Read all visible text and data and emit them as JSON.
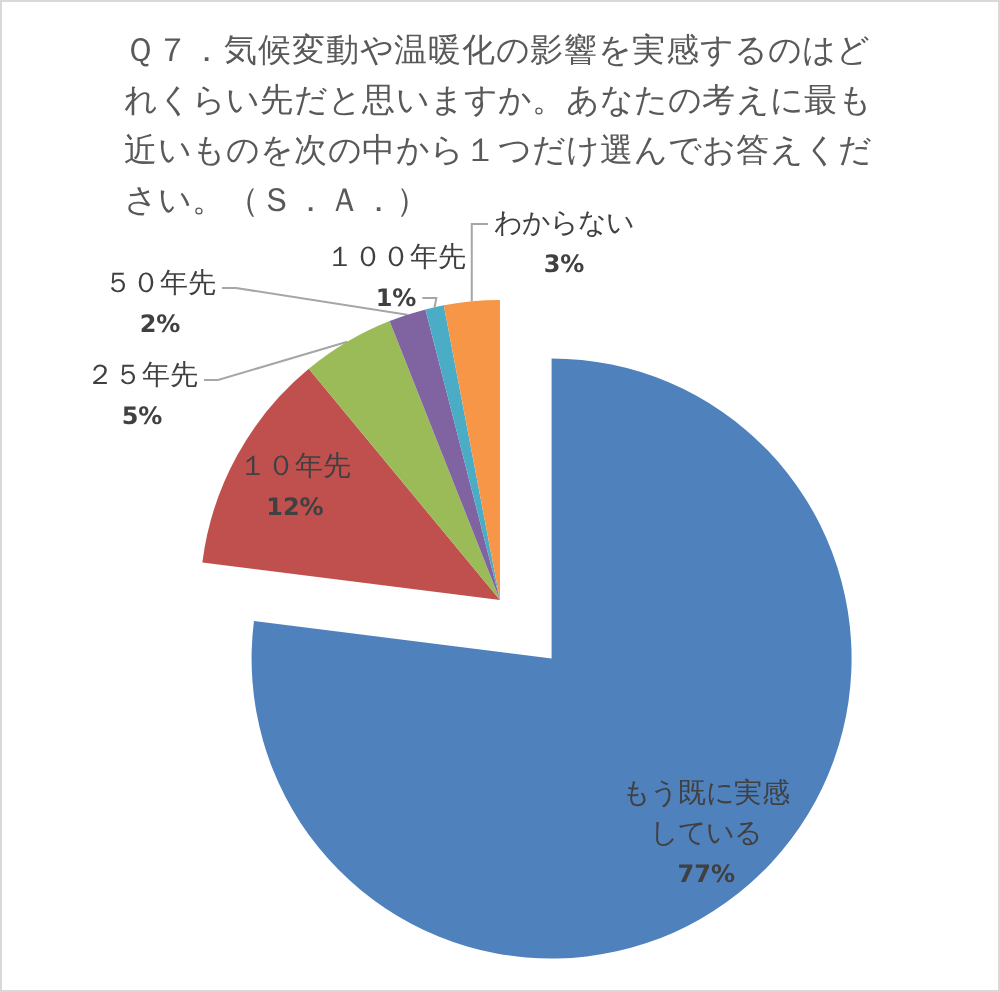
{
  "chart_data": {
    "type": "pie",
    "title": "Ｑ７．気候変動や温暖化の影響を実感するのはどれくらい先だと思いますか。あなたの考えに最も近いものを次の中から１つだけ選んでお答えください。（Ｓ．Ａ．）",
    "categories": [
      "もう既に実感している",
      "１０年先",
      "２５年先",
      "５０年先",
      "１００年先",
      "わからない"
    ],
    "values": [
      77,
      12,
      5,
      2,
      1,
      3
    ],
    "value_labels": [
      "77%",
      "12%",
      "5%",
      "2%",
      "1%",
      "3%"
    ],
    "colors": [
      "#4f81bd",
      "#c0504d",
      "#9bbb59",
      "#8064a2",
      "#4bacc6",
      "#f79646"
    ]
  }
}
